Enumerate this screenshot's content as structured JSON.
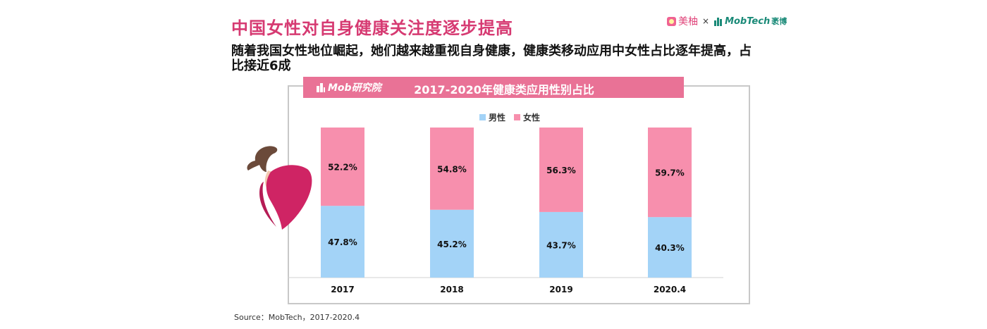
{
  "header": {
    "title": "中国女性对自身健康关注度逐步提高",
    "subtitle": "随着我国女性地位崛起，她们越来越重视自身健康，健康类移动应用中女性占比逐年提高，占比接近6成"
  },
  "brand": {
    "partner_a": "美柚",
    "separator": "×",
    "partner_b": "MobTech",
    "partner_b_cn": "袤博"
  },
  "chart_header": {
    "logo_text": "Mob研究院"
  },
  "chart_data": {
    "type": "bar",
    "stacked": true,
    "percent": true,
    "title": "2017-2020年健康类应用性别占比",
    "categories": [
      "2017",
      "2018",
      "2019",
      "2020.4"
    ],
    "series": [
      {
        "name": "男性",
        "values": [
          47.8,
          45.2,
          43.7,
          40.3
        ],
        "labels": [
          "47.8%",
          "45.2%",
          "43.7%",
          "40.3%"
        ],
        "color": "#a3d3f7"
      },
      {
        "name": "女性",
        "values": [
          52.2,
          54.8,
          56.3,
          59.7
        ],
        "labels": [
          "52.2%",
          "54.8%",
          "56.3%",
          "59.7%"
        ],
        "color": "#f78fad"
      }
    ],
    "ylim": [
      0,
      100
    ],
    "legend": "top-center",
    "grid": false
  },
  "source": "Source：MobTech，2017-2020.4"
}
